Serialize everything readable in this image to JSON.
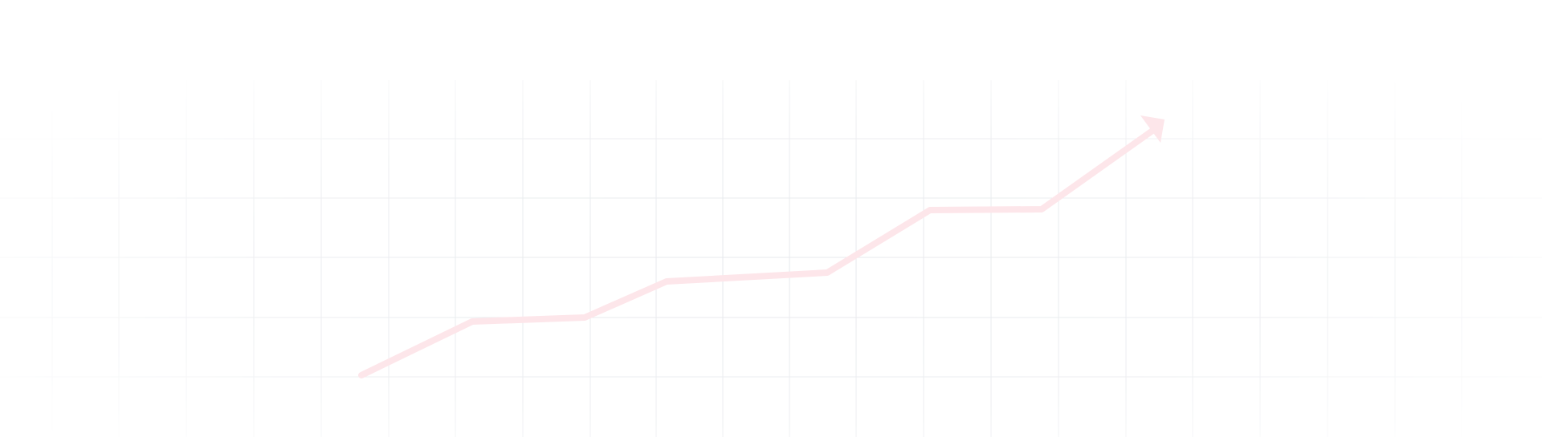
{
  "decor": {
    "grid_color": "#e6e8ec",
    "line_color": "#fde6ea",
    "background": "#ffffff",
    "arrow_icon": "arrow-head-icon"
  }
}
